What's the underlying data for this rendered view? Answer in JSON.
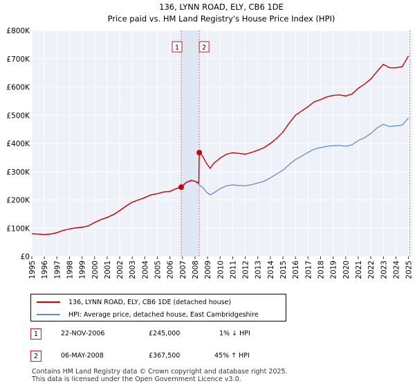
{
  "chart_data": {
    "type": "line",
    "title": "136, LYNN ROAD, ELY, CB6 1DE",
    "subtitle": "Price paid vs. HM Land Registry's House Price Index (HPI)",
    "xlim": [
      1995,
      2025.3
    ],
    "ylim": [
      0,
      800000
    ],
    "x_ticks": [
      "1995",
      "1996",
      "1997",
      "1998",
      "1999",
      "2000",
      "2001",
      "2002",
      "2003",
      "2004",
      "2005",
      "2006",
      "2007",
      "2008",
      "2009",
      "2010",
      "2011",
      "2012",
      "2013",
      "2014",
      "2015",
      "2016",
      "2017",
      "2018",
      "2019",
      "2020",
      "2021",
      "2022",
      "2023",
      "2024",
      "2025"
    ],
    "y_ticks": [
      {
        "value": 0,
        "label": "£0"
      },
      {
        "value": 100000,
        "label": "£100K"
      },
      {
        "value": 200000,
        "label": "£200K"
      },
      {
        "value": 300000,
        "label": "£300K"
      },
      {
        "value": 400000,
        "label": "£400K"
      },
      {
        "value": 500000,
        "label": "£500K"
      },
      {
        "value": 600000,
        "label": "£600K"
      },
      {
        "value": 700000,
        "label": "£700K"
      },
      {
        "value": 800000,
        "label": "£800K"
      }
    ],
    "series": [
      {
        "name": "136, LYNN ROAD, ELY, CB6 1DE (detached house)",
        "color": "#cc0000",
        "x": [
          1995.0,
          1995.5,
          1996.0,
          1996.5,
          1997.0,
          1997.5,
          1998.0,
          1998.5,
          1999.0,
          1999.5,
          2000.0,
          2000.5,
          2001.0,
          2001.5,
          2002.0,
          2002.5,
          2003.0,
          2003.5,
          2004.0,
          2004.5,
          2005.0,
          2005.5,
          2006.0,
          2006.5,
          2006.9,
          2007.3,
          2007.7,
          2008.0,
          2008.3,
          2008.34,
          2008.6,
          2008.9,
          2009.2,
          2009.5,
          2010.0,
          2010.5,
          2011.0,
          2011.5,
          2012.0,
          2012.5,
          2013.0,
          2013.5,
          2014.0,
          2014.5,
          2015.0,
          2015.5,
          2016.0,
          2016.5,
          2017.0,
          2017.5,
          2018.0,
          2018.5,
          2019.0,
          2019.5,
          2020.0,
          2020.5,
          2021.0,
          2021.5,
          2022.0,
          2022.5,
          2023.0,
          2023.5,
          2024.0,
          2024.5,
          2025.0
        ],
        "values": [
          80000,
          79000,
          77000,
          79000,
          84000,
          92000,
          97000,
          101000,
          103000,
          108000,
          120000,
          130000,
          138000,
          148000,
          162000,
          178000,
          192000,
          200000,
          208000,
          218000,
          222000,
          228000,
          230000,
          240000,
          245000,
          262000,
          268000,
          266000,
          260000,
          367500,
          355000,
          330000,
          312000,
          330000,
          348000,
          362000,
          367000,
          365000,
          362000,
          368000,
          376000,
          385000,
          400000,
          418000,
          440000,
          472000,
          500000,
          515000,
          530000,
          548000,
          555000,
          565000,
          570000,
          572000,
          568000,
          575000,
          595000,
          610000,
          628000,
          655000,
          680000,
          668000,
          668000,
          672000,
          710000
        ]
      },
      {
        "name": "HPI: Average price, detached house, East Cambridgeshire",
        "color": "#5b8fd0",
        "x": [
          2008.34,
          2008.6,
          2008.9,
          2009.2,
          2009.5,
          2010.0,
          2010.5,
          2011.0,
          2011.5,
          2012.0,
          2012.5,
          2013.0,
          2013.5,
          2014.0,
          2014.5,
          2015.0,
          2015.5,
          2016.0,
          2016.5,
          2017.0,
          2017.5,
          2018.0,
          2018.5,
          2019.0,
          2019.5,
          2020.0,
          2020.5,
          2021.0,
          2021.5,
          2022.0,
          2022.5,
          2023.0,
          2023.5,
          2024.0,
          2024.5,
          2025.0
        ],
        "values": [
          253000,
          245000,
          228000,
          218000,
          225000,
          240000,
          250000,
          253000,
          251000,
          250000,
          254000,
          260000,
          266000,
          278000,
          292000,
          305000,
          325000,
          343000,
          355000,
          368000,
          380000,
          385000,
          390000,
          392000,
          393000,
          390000,
          395000,
          410000,
          420000,
          435000,
          455000,
          468000,
          460000,
          462000,
          465000,
          490000
        ]
      }
    ],
    "hpi_pre_2008": {
      "x": [
        1995.0,
        1995.5,
        1996.0,
        1996.5,
        1997.0,
        1997.5,
        1998.0,
        1998.5,
        1999.0,
        1999.5,
        2000.0,
        2000.5,
        2001.0,
        2001.5,
        2002.0,
        2002.5,
        2003.0,
        2003.5,
        2004.0,
        2004.5,
        2005.0,
        2005.5,
        2006.0,
        2006.5,
        2006.9,
        2007.3,
        2007.7,
        2008.0,
        2008.34
      ],
      "values": [
        80000,
        79000,
        77000,
        79000,
        84000,
        92000,
        97000,
        101000,
        103000,
        108000,
        120000,
        130000,
        138000,
        148000,
        162000,
        178000,
        192000,
        200000,
        208000,
        218000,
        222000,
        228000,
        230000,
        240000,
        247000,
        262000,
        270000,
        266000,
        253000
      ]
    },
    "sales": [
      {
        "id": "1",
        "x": 2006.9,
        "value": 245000
      },
      {
        "id": "2",
        "x": 2008.34,
        "value": 367500
      }
    ],
    "legend": [
      {
        "label": "136, LYNN ROAD, ELY, CB6 1DE (detached house)",
        "color": "#cc0000"
      },
      {
        "label": "HPI: Average price, detached house, East Cambridgeshire",
        "color": "#5b8fd0"
      }
    ],
    "transactions": [
      {
        "id": "1",
        "date": "22-NOV-2006",
        "price": "£245,000",
        "hpi": "1% ↓ HPI"
      },
      {
        "id": "2",
        "date": "06-MAY-2008",
        "price": "£367,500",
        "hpi": "45% ↑ HPI"
      }
    ]
  },
  "footer": {
    "line1": "Contains HM Land Registry data © Crown copyright and database right 2025.",
    "line2": "This data is licensed under the Open Government Licence v3.0."
  }
}
